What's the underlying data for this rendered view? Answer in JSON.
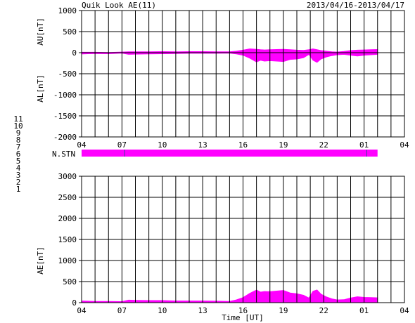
{
  "header": {
    "title": "Quik Look AE(11)",
    "date_range": "2013/04/16-2013/04/17"
  },
  "station_legend": {
    "labels": [
      "11",
      "10",
      "9",
      "8",
      "7",
      "6",
      "5",
      "4",
      "3",
      "2",
      "1"
    ],
    "colors": [
      "#00c8c8",
      "#ff00ff",
      "#0000ff",
      "#ffff00",
      "#80ff80",
      "#ff0000",
      "#a0a0a0",
      "#a0a0a0",
      "#008080",
      "#800080",
      "#0000cc"
    ]
  },
  "nstn": {
    "label": "N.STN",
    "color": "#ff00ff",
    "coverage": [
      4,
      26
    ],
    "tick_marks": [
      7.2,
      25.2
    ]
  },
  "chart_data": [
    {
      "type": "area",
      "ylabel_top": "AU[nT]",
      "ylabel_bottom": "AL[nT]",
      "xlabel": "",
      "xlim": [
        4,
        28
      ],
      "ylim": [
        -2000,
        1000
      ],
      "y_ticks": [
        1000,
        500,
        0,
        -500,
        -1000,
        -1500,
        -2000
      ],
      "x_ticks": [
        "04",
        "07",
        "10",
        "13",
        "16",
        "19",
        "22",
        "01",
        "04"
      ],
      "grid": true,
      "fill_color": "#ff00ff",
      "x_hours": [
        4,
        5,
        6,
        7,
        7.5,
        8,
        9,
        10,
        11,
        12,
        13,
        14,
        15,
        15.5,
        16,
        16.5,
        17,
        17.3,
        17.6,
        18,
        18.5,
        19,
        19.5,
        20,
        20.5,
        20.9,
        21.2,
        21.5,
        21.8,
        22.2,
        22.6,
        23,
        23.5,
        24,
        24.5,
        25,
        25.5,
        26
      ],
      "au": [
        10,
        10,
        5,
        15,
        20,
        20,
        20,
        25,
        20,
        25,
        25,
        20,
        20,
        35,
        60,
        90,
        80,
        70,
        65,
        70,
        75,
        80,
        70,
        60,
        55,
        70,
        90,
        70,
        50,
        35,
        20,
        15,
        30,
        50,
        60,
        65,
        70,
        75
      ],
      "al": [
        -30,
        -20,
        -25,
        -10,
        -40,
        -35,
        -30,
        -25,
        -20,
        -15,
        -15,
        -15,
        -10,
        -30,
        -60,
        -130,
        -220,
        -180,
        -200,
        -190,
        -200,
        -210,
        -160,
        -150,
        -120,
        -40,
        -180,
        -230,
        -150,
        -100,
        -70,
        -50,
        -40,
        -60,
        -80,
        -60,
        -50,
        -40
      ]
    },
    {
      "type": "area",
      "ylabel": "AE[nT]",
      "xlabel": "Time [UT]",
      "xlim": [
        4,
        28
      ],
      "ylim": [
        0,
        3000
      ],
      "y_ticks": [
        3000,
        2500,
        2000,
        1500,
        1000,
        500,
        0
      ],
      "x_ticks": [
        "04",
        "07",
        "10",
        "13",
        "16",
        "19",
        "22",
        "01",
        "04"
      ],
      "grid": true,
      "fill_color": "#ff00ff",
      "x_hours": [
        4,
        5,
        6,
        7,
        7.5,
        8,
        9,
        10,
        11,
        12,
        13,
        14,
        15,
        15.5,
        16,
        16.5,
        17,
        17.3,
        17.6,
        18,
        18.5,
        19,
        19.5,
        20,
        20.5,
        20.9,
        21.2,
        21.5,
        21.8,
        22.2,
        22.6,
        23,
        23.5,
        24,
        24.5,
        25,
        25.5,
        26
      ],
      "values": [
        40,
        30,
        30,
        25,
        60,
        55,
        50,
        50,
        40,
        40,
        40,
        35,
        30,
        65,
        120,
        220,
        300,
        250,
        265,
        260,
        275,
        290,
        230,
        210,
        175,
        110,
        270,
        300,
        200,
        135,
        90,
        65,
        70,
        110,
        140,
        125,
        120,
        115
      ]
    }
  ]
}
